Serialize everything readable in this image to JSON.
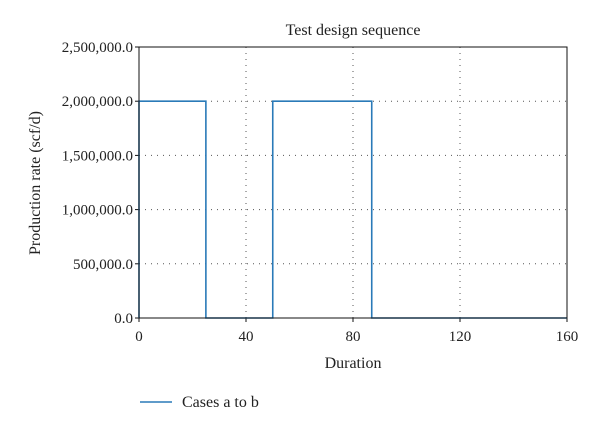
{
  "chart_data": {
    "type": "line",
    "title": "Test design sequence",
    "xlabel": "Duration",
    "ylabel": "Production rate (scf/d)",
    "xlim": [
      0,
      160
    ],
    "ylim": [
      0,
      2500000
    ],
    "x_ticks": [
      0,
      40,
      80,
      120,
      160
    ],
    "x_tick_labels": [
      "0",
      "40",
      "80",
      "120",
      "160"
    ],
    "y_ticks": [
      0,
      500000,
      1000000,
      1500000,
      2000000,
      2500000
    ],
    "y_tick_labels": [
      "0.0",
      "500,000.0",
      "1,000,000.0",
      "1,500,000.0",
      "2,000,000.0",
      "2,500,000.0"
    ],
    "grid": true,
    "legend_position": "bottom-left",
    "series": [
      {
        "name": "Cases a to b",
        "color": "#2a7ab8",
        "x": [
          0,
          0,
          25,
          25,
          50,
          50,
          87,
          87,
          160
        ],
        "y": [
          0,
          2000000,
          2000000,
          0,
          0,
          2000000,
          2000000,
          0,
          0
        ]
      }
    ]
  }
}
